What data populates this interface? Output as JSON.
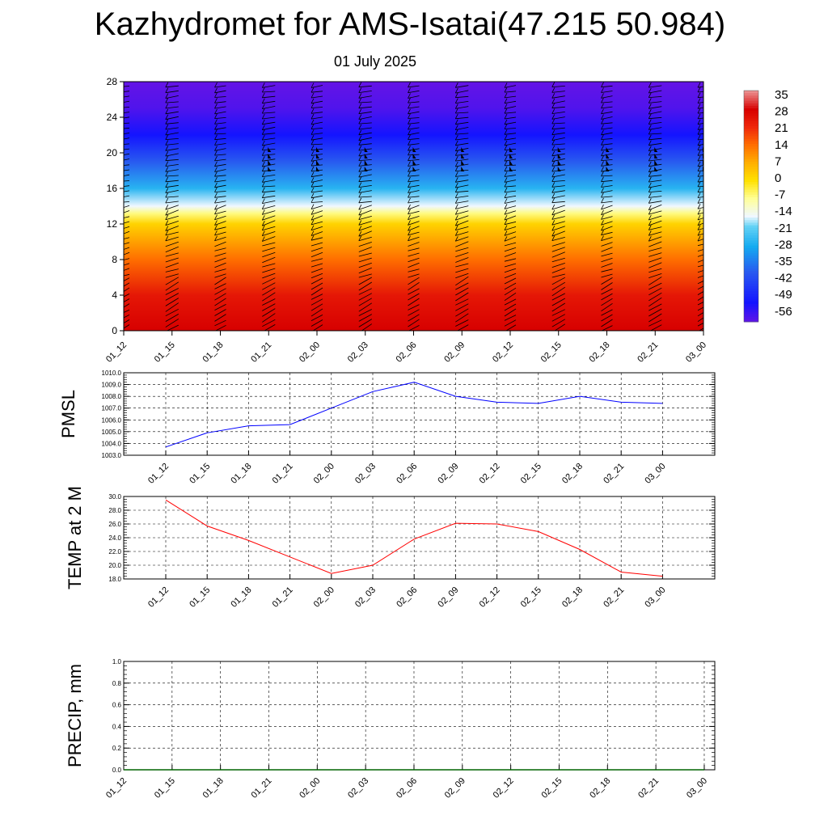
{
  "header": {
    "title": "Kazhydromet for AMS-Isatai(47.215 50.984)",
    "date": "01 July 2025"
  },
  "colorbar": {
    "labels": [
      "35",
      "28",
      "21",
      "14",
      "7",
      "0",
      "-7",
      "-14",
      "-21",
      "-28",
      "-35",
      "-42",
      "-49",
      "-56"
    ]
  },
  "chart_data": [
    {
      "type": "heatmap",
      "title": "Kazhydromet for AMS-Isatai(47.215 50.984)",
      "subtitle": "01 July 2025",
      "x_ticks": [
        "01_12",
        "01_15",
        "01_18",
        "01_21",
        "02_00",
        "02_03",
        "02_06",
        "02_09",
        "02_12",
        "02_15",
        "02_18",
        "02_21",
        "03_00"
      ],
      "y_ticks": [
        "0",
        "4",
        "8",
        "12",
        "16",
        "20",
        "24",
        "28"
      ],
      "ylim": [
        0,
        28
      ],
      "color_scale_range": [
        -56,
        35
      ],
      "colormap": "blue-cyan-white-yellow-red",
      "overlay": "wind barbs",
      "temperature_profile": [
        {
          "height": 0,
          "value": 28
        },
        {
          "height": 4,
          "value": 24
        },
        {
          "height": 8,
          "value": 14
        },
        {
          "height": 12,
          "value": 2
        },
        {
          "height": 13.2,
          "value": -6
        },
        {
          "height": 14,
          "value": -14
        },
        {
          "height": 16,
          "value": -24
        },
        {
          "height": 19,
          "value": -36
        },
        {
          "height": 22,
          "value": -48
        },
        {
          "height": 25,
          "value": -54
        },
        {
          "height": 28,
          "value": -56
        }
      ]
    },
    {
      "type": "line",
      "ylabel": "PMSL",
      "x": [
        "01_12",
        "01_15",
        "01_18",
        "01_21",
        "02_00",
        "02_03",
        "02_06",
        "02_09",
        "02_12",
        "02_15",
        "02_18",
        "02_21",
        "03_00"
      ],
      "y_ticks": [
        "1003.0",
        "1004.0",
        "1005.0",
        "1006.0",
        "1007.0",
        "1008.0",
        "1009.0",
        "1010.0"
      ],
      "ylim": [
        1003,
        1010
      ],
      "values": [
        1003.7,
        1004.9,
        1005.5,
        1005.6,
        1007.0,
        1008.4,
        1009.2,
        1008.0,
        1007.5,
        1007.4,
        1008.0,
        1007.5,
        1007.4
      ],
      "color": "#0000ff",
      "grid": true
    },
    {
      "type": "line",
      "ylabel": "TEMP at 2 M",
      "x": [
        "01_12",
        "01_15",
        "01_18",
        "01_21",
        "02_00",
        "02_03",
        "02_06",
        "02_09",
        "02_12",
        "02_15",
        "02_18",
        "02_21",
        "03_00"
      ],
      "y_ticks": [
        "18.0",
        "20.0",
        "22.0",
        "24.0",
        "26.0",
        "28.0",
        "30.0"
      ],
      "ylim": [
        18,
        30
      ],
      "values": [
        29.5,
        25.7,
        23.6,
        21.2,
        18.8,
        20.0,
        23.8,
        26.1,
        26.0,
        24.9,
        22.3,
        19.0,
        18.4
      ],
      "color": "#ff0000",
      "grid": true
    },
    {
      "type": "line",
      "ylabel": "PRECIP, mm",
      "x": [
        "01_12",
        "01_15",
        "01_18",
        "01_21",
        "02_00",
        "02_03",
        "02_06",
        "02_09",
        "02_12",
        "02_15",
        "02_18",
        "02_21",
        "03_00"
      ],
      "y_ticks": [
        "0.0",
        "0.2",
        "0.4",
        "0.6",
        "0.8",
        "1.0"
      ],
      "ylim": [
        0,
        1
      ],
      "values": [
        0,
        0,
        0,
        0,
        0,
        0,
        0,
        0,
        0,
        0,
        0,
        0,
        0
      ],
      "color": "#006400",
      "grid": true
    }
  ]
}
